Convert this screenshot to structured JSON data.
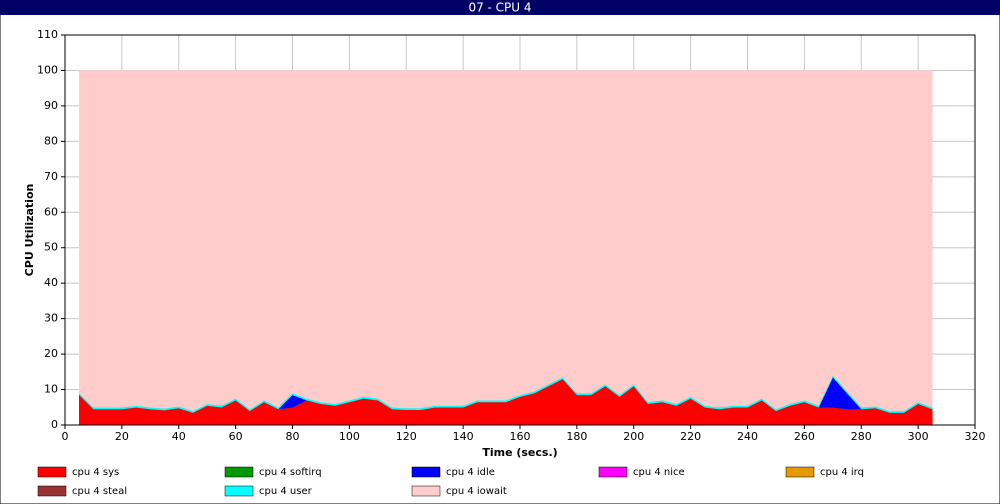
{
  "chart_data": {
    "type": "stacked-area",
    "title": "07 - CPU 4",
    "xlabel": "Time (secs.)",
    "ylabel": "CPU Utilization",
    "x": [
      5,
      10,
      15,
      20,
      25,
      30,
      35,
      40,
      45,
      50,
      55,
      60,
      65,
      70,
      75,
      80,
      85,
      90,
      95,
      100,
      105,
      110,
      115,
      120,
      125,
      130,
      135,
      140,
      145,
      150,
      155,
      160,
      165,
      170,
      175,
      180,
      185,
      190,
      195,
      200,
      205,
      210,
      215,
      220,
      225,
      230,
      235,
      240,
      245,
      250,
      255,
      260,
      265,
      270,
      275,
      280,
      285,
      290,
      295,
      300,
      305
    ],
    "xlim": [
      0,
      320
    ],
    "xticks": [
      0,
      20,
      40,
      60,
      80,
      100,
      120,
      140,
      160,
      180,
      200,
      220,
      240,
      260,
      280,
      300,
      320
    ],
    "ylim": [
      0,
      110
    ],
    "yticks": [
      0,
      10,
      20,
      30,
      40,
      50,
      60,
      70,
      80,
      90,
      100,
      110
    ],
    "grid": true,
    "series": [
      {
        "name": "cpu 4 sys",
        "color": "#ff0000",
        "values": [
          8.5,
          4.5,
          4.5,
          4.5,
          5,
          4.5,
          4.2,
          4.8,
          3.5,
          5.5,
          5,
          7,
          4,
          6.5,
          4.5,
          5,
          7,
          6,
          5.5,
          6.5,
          7.5,
          7,
          4.5,
          4.3,
          4.3,
          5,
          5,
          5,
          6.5,
          6.5,
          6.5,
          8,
          9,
          11,
          13,
          8.5,
          8.5,
          11,
          8,
          11,
          6,
          6.5,
          5.5,
          7.5,
          5,
          4.5,
          5,
          5,
          7,
          4,
          5.5,
          6.5,
          5,
          5,
          4.5,
          4.5,
          4.8,
          3.5,
          3.5,
          6,
          4.5
        ]
      },
      {
        "name": "cpu 4 softirq",
        "color": "#009900",
        "values": [
          0,
          0,
          0,
          0,
          0,
          0,
          0,
          0,
          0,
          0,
          0,
          0,
          0,
          0,
          0,
          0,
          0,
          0,
          0,
          0,
          0,
          0,
          0,
          0,
          0,
          0,
          0,
          0,
          0,
          0,
          0,
          0,
          0,
          0,
          0,
          0,
          0,
          0,
          0,
          0,
          0,
          0,
          0,
          0,
          0,
          0,
          0,
          0,
          0,
          0,
          0,
          0,
          0,
          0,
          0,
          0,
          0,
          0,
          0,
          0,
          0
        ]
      },
      {
        "name": "cpu 4 idle",
        "color": "#0000ff",
        "values": [
          0,
          0,
          0,
          0,
          0,
          0,
          0,
          0,
          0,
          0,
          0,
          0,
          0,
          0,
          0,
          3.5,
          0,
          0,
          0,
          0,
          0,
          0,
          0,
          0,
          0,
          0,
          0,
          0,
          0,
          0,
          0,
          0,
          0,
          0,
          0,
          0,
          0,
          0,
          0,
          0,
          0,
          0,
          0,
          0,
          0,
          0,
          0,
          0,
          0,
          0,
          0,
          0,
          0,
          8.5,
          4.5,
          0,
          0,
          0,
          0,
          0,
          0
        ]
      },
      {
        "name": "cpu 4 nice",
        "color": "#ff00ff",
        "values": [
          0,
          0,
          0,
          0,
          0,
          0,
          0,
          0,
          0,
          0,
          0,
          0,
          0,
          0,
          0,
          0,
          0,
          0,
          0,
          0,
          0,
          0,
          0,
          0,
          0,
          0,
          0,
          0,
          0,
          0,
          0,
          0,
          0,
          0,
          0,
          0,
          0,
          0,
          0,
          0,
          0,
          0,
          0,
          0,
          0,
          0,
          0,
          0,
          0,
          0,
          0,
          0,
          0,
          0,
          0,
          0,
          0,
          0,
          0,
          0,
          0
        ]
      },
      {
        "name": "cpu 4 irq",
        "color": "#e69900",
        "values": [
          0,
          0,
          0,
          0,
          0,
          0,
          0,
          0,
          0,
          0,
          0,
          0,
          0,
          0,
          0,
          0,
          0,
          0,
          0,
          0,
          0,
          0,
          0,
          0,
          0,
          0,
          0,
          0,
          0,
          0,
          0,
          0,
          0,
          0,
          0,
          0,
          0,
          0,
          0,
          0,
          0,
          0,
          0,
          0,
          0,
          0,
          0,
          0,
          0,
          0,
          0,
          0,
          0,
          0,
          0,
          0,
          0,
          0,
          0,
          0,
          0
        ]
      },
      {
        "name": "cpu 4 steal",
        "color": "#993333",
        "values": [
          0,
          0,
          0,
          0,
          0,
          0,
          0,
          0,
          0,
          0,
          0,
          0,
          0,
          0,
          0,
          0,
          0,
          0,
          0,
          0,
          0,
          0,
          0,
          0,
          0,
          0,
          0,
          0,
          0,
          0,
          0,
          0,
          0,
          0,
          0,
          0,
          0,
          0,
          0,
          0,
          0,
          0,
          0,
          0,
          0,
          0,
          0,
          0,
          0,
          0,
          0,
          0,
          0,
          0,
          0,
          0,
          0,
          0,
          0,
          0,
          0
        ]
      },
      {
        "name": "cpu 4 user",
        "color": "#00ffff",
        "values": [
          0.5,
          0.5,
          0.5,
          0.5,
          0.5,
          0.5,
          0.5,
          0.5,
          0.5,
          0.5,
          0.5,
          0.5,
          0.5,
          0.5,
          0.5,
          0.5,
          0.5,
          0.5,
          0.5,
          0.5,
          0.5,
          0.5,
          0.5,
          0.5,
          0.5,
          0.5,
          0.5,
          0.5,
          0.5,
          0.5,
          0.5,
          0.5,
          0.5,
          0.5,
          0.5,
          0.5,
          0.5,
          0.5,
          0.5,
          0.5,
          0.5,
          0.5,
          0.5,
          0.5,
          0.5,
          0.5,
          0.5,
          0.5,
          0.5,
          0.5,
          0.5,
          0.5,
          0.5,
          0.5,
          0.5,
          0.5,
          0.5,
          0.5,
          0.5,
          0.5,
          0.5
        ]
      },
      {
        "name": "cpu 4 iowait",
        "color": "#ffcccc",
        "values": [
          91,
          95,
          95,
          95,
          94.5,
          95,
          95.3,
          94.7,
          96,
          94,
          94.5,
          92.5,
          95.5,
          93,
          95,
          91,
          92.5,
          93.5,
          94,
          93,
          92,
          92.5,
          95,
          95.2,
          95.2,
          94.5,
          94.5,
          94.5,
          93,
          93,
          93,
          91.5,
          90.5,
          88.5,
          86.5,
          91,
          91,
          88.5,
          91.5,
          88.5,
          93.5,
          93,
          94,
          92,
          94.5,
          95,
          94.5,
          94.5,
          92.5,
          95.5,
          94,
          93,
          94.5,
          86,
          90.5,
          95,
          94.7,
          96,
          96,
          93.5,
          95
        ]
      }
    ]
  }
}
